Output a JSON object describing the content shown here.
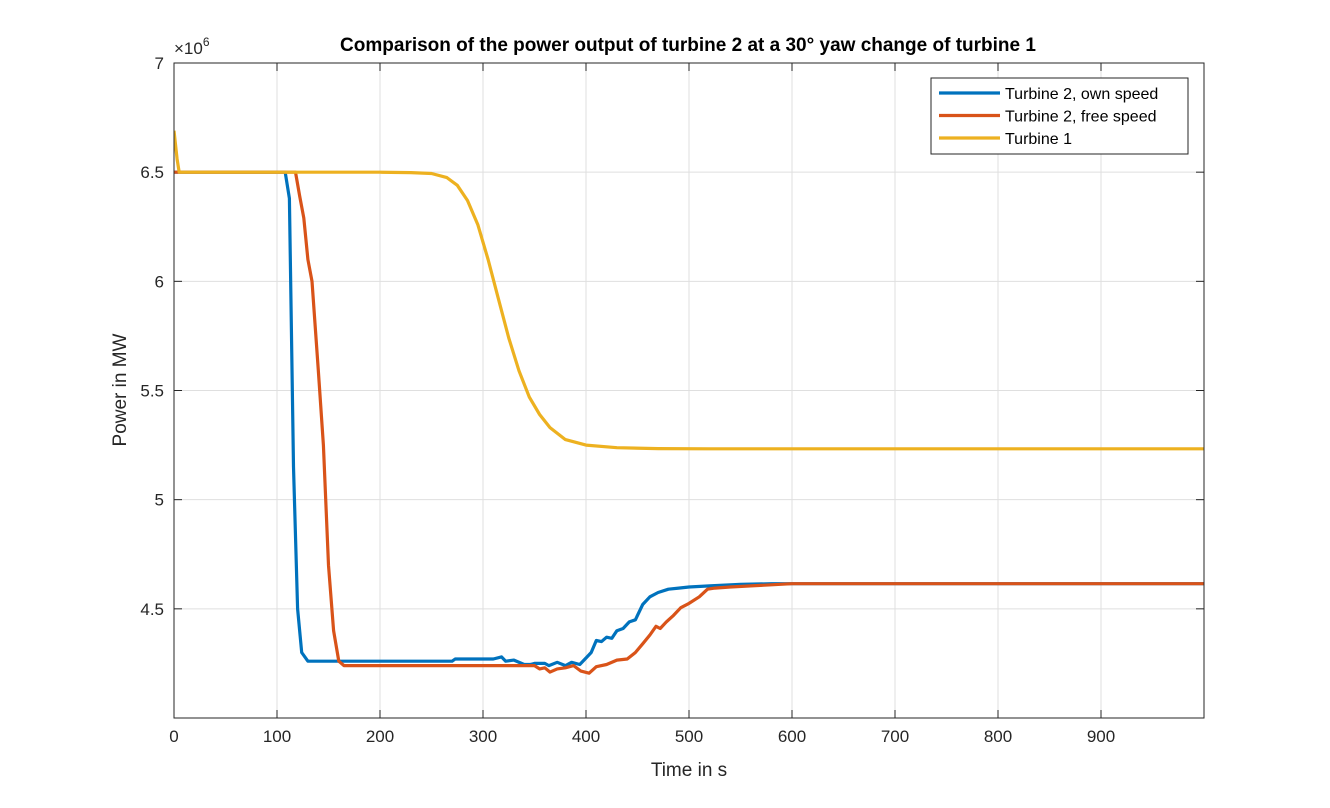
{
  "chart_data": {
    "type": "line",
    "title": "Comparison of the power output of turbine 2 at a 30° yaw change of turbine 1",
    "xlabel": "Time in s",
    "ylabel": "Power in MW",
    "xlim": [
      0,
      1000
    ],
    "ylim": [
      4000000,
      7000000
    ],
    "x_ticks": [
      0,
      100,
      200,
      300,
      400,
      500,
      600,
      700,
      800,
      900
    ],
    "x_tick_labels": [
      "0",
      "100",
      "200",
      "300",
      "400",
      "500",
      "600",
      "700",
      "800",
      "900"
    ],
    "y_ticks": [
      4500000,
      5000000,
      5500000,
      6000000,
      6500000,
      7000000
    ],
    "y_tick_labels": [
      "4.5",
      "5",
      "5.5",
      "6",
      "6.5",
      "7"
    ],
    "y_multiplier": "×10",
    "y_multiplier_exponent": "6",
    "grid": true,
    "legend_position": "top-right",
    "series": [
      {
        "name": "Turbine 2, own speed",
        "color": "#0072BD",
        "points": [
          [
            0,
            6500000
          ],
          [
            108,
            6500000
          ],
          [
            112,
            6380000
          ],
          [
            116,
            5150000
          ],
          [
            120,
            4500000
          ],
          [
            124,
            4300000
          ],
          [
            130,
            4260000
          ],
          [
            200,
            4260000
          ],
          [
            270,
            4260000
          ],
          [
            273,
            4270000
          ],
          [
            310,
            4270000
          ],
          [
            318,
            4280000
          ],
          [
            322,
            4260000
          ],
          [
            330,
            4265000
          ],
          [
            340,
            4245000
          ],
          [
            346,
            4245000
          ],
          [
            350,
            4250000
          ],
          [
            360,
            4250000
          ],
          [
            364,
            4240000
          ],
          [
            372,
            4255000
          ],
          [
            380,
            4240000
          ],
          [
            386,
            4255000
          ],
          [
            394,
            4245000
          ],
          [
            400,
            4275000
          ],
          [
            405,
            4300000
          ],
          [
            410,
            4355000
          ],
          [
            415,
            4350000
          ],
          [
            420,
            4370000
          ],
          [
            425,
            4365000
          ],
          [
            430,
            4400000
          ],
          [
            436,
            4410000
          ],
          [
            442,
            4440000
          ],
          [
            448,
            4450000
          ],
          [
            455,
            4520000
          ],
          [
            462,
            4555000
          ],
          [
            470,
            4575000
          ],
          [
            480,
            4590000
          ],
          [
            490,
            4595000
          ],
          [
            500,
            4600000
          ],
          [
            520,
            4605000
          ],
          [
            550,
            4612000
          ],
          [
            580,
            4615000
          ],
          [
            600,
            4615000
          ],
          [
            1000,
            4615000
          ]
        ]
      },
      {
        "name": "Turbine 2, free speed",
        "color": "#D95319",
        "points": [
          [
            0,
            6500000
          ],
          [
            118,
            6500000
          ],
          [
            122,
            6390000
          ],
          [
            126,
            6290000
          ],
          [
            130,
            6100000
          ],
          [
            134,
            6000000
          ],
          [
            140,
            5600000
          ],
          [
            145,
            5250000
          ],
          [
            150,
            4700000
          ],
          [
            155,
            4400000
          ],
          [
            160,
            4260000
          ],
          [
            165,
            4240000
          ],
          [
            200,
            4240000
          ],
          [
            300,
            4240000
          ],
          [
            350,
            4240000
          ],
          [
            355,
            4225000
          ],
          [
            360,
            4230000
          ],
          [
            365,
            4210000
          ],
          [
            372,
            4225000
          ],
          [
            380,
            4230000
          ],
          [
            388,
            4240000
          ],
          [
            395,
            4215000
          ],
          [
            403,
            4205000
          ],
          [
            410,
            4235000
          ],
          [
            420,
            4245000
          ],
          [
            430,
            4265000
          ],
          [
            440,
            4270000
          ],
          [
            448,
            4300000
          ],
          [
            455,
            4340000
          ],
          [
            462,
            4380000
          ],
          [
            468,
            4420000
          ],
          [
            472,
            4410000
          ],
          [
            478,
            4440000
          ],
          [
            485,
            4470000
          ],
          [
            492,
            4505000
          ],
          [
            500,
            4525000
          ],
          [
            510,
            4555000
          ],
          [
            518,
            4590000
          ],
          [
            525,
            4595000
          ],
          [
            540,
            4600000
          ],
          [
            560,
            4605000
          ],
          [
            580,
            4610000
          ],
          [
            600,
            4615000
          ],
          [
            1000,
            4615000
          ]
        ]
      },
      {
        "name": "Turbine 1",
        "color": "#EDB120",
        "points": [
          [
            0,
            6690000
          ],
          [
            3,
            6560000
          ],
          [
            5,
            6500000
          ],
          [
            200,
            6500000
          ],
          [
            230,
            6498000
          ],
          [
            250,
            6494000
          ],
          [
            265,
            6475000
          ],
          [
            275,
            6440000
          ],
          [
            285,
            6370000
          ],
          [
            295,
            6260000
          ],
          [
            305,
            6100000
          ],
          [
            315,
            5920000
          ],
          [
            325,
            5740000
          ],
          [
            335,
            5590000
          ],
          [
            345,
            5470000
          ],
          [
            355,
            5390000
          ],
          [
            365,
            5330000
          ],
          [
            380,
            5275000
          ],
          [
            400,
            5250000
          ],
          [
            430,
            5238000
          ],
          [
            470,
            5234000
          ],
          [
            520,
            5233000
          ],
          [
            1000,
            5233000
          ]
        ]
      }
    ]
  }
}
